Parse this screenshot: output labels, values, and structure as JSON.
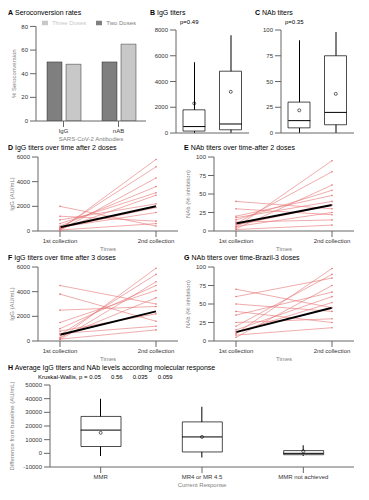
{
  "chart_data": [
    {
      "panel": "A",
      "type": "bar",
      "title": "Seroconversion rates",
      "categories": [
        "IgG",
        "nAB"
      ],
      "series": [
        {
          "name": "Two Doses",
          "color": "#7f7f7f",
          "values": [
            50,
            50
          ]
        },
        {
          "name": "Three Doses",
          "color": "#c8c8c8",
          "values": [
            48,
            65
          ]
        }
      ],
      "xlabel": "SARS-CoV-2 Antibodies",
      "ylabel": "% Seroconversion",
      "ylim": [
        0,
        80
      ],
      "yticks": [
        0,
        20,
        40,
        60,
        80
      ],
      "legend": "top-right"
    },
    {
      "panel": "B",
      "type": "box",
      "title": "IgG titers",
      "annotations": [
        "p=0.49"
      ],
      "boxes": [
        {
          "min": 0,
          "q1": 150,
          "median": 500,
          "q3": 1800,
          "max": 5500,
          "mean": 2300
        },
        {
          "min": 0,
          "q1": 250,
          "median": 700,
          "q3": 4800,
          "max": 7600,
          "mean": 3200
        }
      ],
      "ylim": [
        0,
        8000
      ],
      "yticks": [
        0,
        2000,
        4000,
        6000,
        8000
      ],
      "tick_labels": "y"
    },
    {
      "panel": "C",
      "type": "box",
      "title": "NAb titers",
      "annotations": [
        "p=0.35"
      ],
      "boxes": [
        {
          "min": 0,
          "q1": 5,
          "median": 12,
          "q3": 30,
          "max": 90,
          "mean": 22
        },
        {
          "min": 0,
          "q1": 8,
          "median": 20,
          "q3": 75,
          "max": 98,
          "mean": 38
        }
      ],
      "ylim": [
        0,
        100
      ],
      "yticks": [
        0,
        25,
        50,
        75,
        100
      ],
      "tick_labels": "y"
    },
    {
      "panel": "D",
      "type": "line",
      "title": "IgG titers over time after 2 doses",
      "categories": [
        "1st collection",
        "2nd collection"
      ],
      "xlabel": "Times",
      "ylabel": "IgG (AU/mL)",
      "color": "#e57373",
      "ylim": [
        0,
        6000
      ],
      "yticks": [
        0,
        2000,
        4000,
        6000
      ],
      "series": [
        {
          "values": [
            100,
            5800
          ]
        },
        {
          "values": [
            200,
            5200
          ]
        },
        {
          "values": [
            50,
            4300
          ]
        },
        {
          "values": [
            400,
            3600
          ]
        },
        {
          "values": [
            150,
            2900
          ]
        },
        {
          "values": [
            900,
            2200
          ]
        },
        {
          "values": [
            300,
            1500
          ]
        },
        {
          "values": [
            1200,
            800
          ]
        },
        {
          "values": [
            80,
            600
          ]
        },
        {
          "values": [
            2000,
            400
          ]
        },
        {
          "values": [
            600,
            3100
          ]
        },
        {
          "values": [
            250,
            1900
          ]
        },
        {
          "color": "#000000",
          "line_style": "thick",
          "values": [
            300,
            2000
          ]
        }
      ]
    },
    {
      "panel": "E",
      "type": "line",
      "title": "NAb titers over time-after 2 doses",
      "categories": [
        "1st collection",
        "2nd collection"
      ],
      "xlabel": "Times",
      "ylabel": "NAb (% inhibition)",
      "color": "#e57373",
      "ylim": [
        0,
        100
      ],
      "yticks": [
        0,
        25,
        50,
        75,
        100
      ],
      "series": [
        {
          "values": [
            5,
            95
          ]
        },
        {
          "values": [
            10,
            80
          ]
        },
        {
          "values": [
            3,
            62
          ]
        },
        {
          "values": [
            20,
            48
          ]
        },
        {
          "values": [
            8,
            35
          ]
        },
        {
          "values": [
            30,
            22
          ]
        },
        {
          "values": [
            12,
            15
          ]
        },
        {
          "values": [
            2,
            8
          ]
        },
        {
          "values": [
            40,
            30
          ]
        },
        {
          "values": [
            15,
            55
          ]
        },
        {
          "values": [
            6,
            25
          ]
        },
        {
          "values": [
            18,
            40
          ]
        },
        {
          "color": "#000000",
          "line_style": "thick",
          "values": [
            10,
            35
          ]
        }
      ]
    },
    {
      "panel": "F",
      "type": "line",
      "title": "IgG titers over time after 3 doses",
      "categories": [
        "1st collection",
        "2nd collection"
      ],
      "xlabel": "Times",
      "ylabel": "IgG (AU/mL)",
      "color": "#e57373",
      "ylim": [
        0,
        6000
      ],
      "yticks": [
        0,
        2000,
        4000,
        6000
      ],
      "series": [
        {
          "values": [
            200,
            5900
          ]
        },
        {
          "values": [
            500,
            5400
          ]
        },
        {
          "values": [
            100,
            4800
          ]
        },
        {
          "values": [
            1500,
            4100
          ]
        },
        {
          "values": [
            300,
            3500
          ]
        },
        {
          "values": [
            2500,
            2800
          ]
        },
        {
          "values": [
            800,
            2200
          ]
        },
        {
          "values": [
            3800,
            1600
          ]
        },
        {
          "values": [
            150,
            900
          ]
        },
        {
          "values": [
            4500,
            3000
          ]
        },
        {
          "values": [
            1000,
            4500
          ]
        },
        {
          "values": [
            600,
            1200
          ]
        },
        {
          "color": "#000000",
          "line_style": "thick",
          "values": [
            500,
            2400
          ]
        }
      ]
    },
    {
      "panel": "G",
      "type": "line",
      "title": "NAb titers over time-Brazil-3 doses",
      "categories": [
        "1st collection",
        "2nd collection"
      ],
      "xlabel": "Times",
      "ylabel": "NAb (% inhibition)",
      "color": "#e57373",
      "ylim": [
        0,
        100
      ],
      "yticks": [
        0,
        25,
        50,
        75,
        100
      ],
      "series": [
        {
          "values": [
            10,
            98
          ]
        },
        {
          "values": [
            20,
            90
          ]
        },
        {
          "values": [
            5,
            75
          ]
        },
        {
          "values": [
            35,
            66
          ]
        },
        {
          "values": [
            12,
            52
          ]
        },
        {
          "values": [
            50,
            40
          ]
        },
        {
          "values": [
            25,
            30
          ]
        },
        {
          "values": [
            70,
            45
          ]
        },
        {
          "values": [
            8,
            18
          ]
        },
        {
          "values": [
            60,
            85
          ]
        },
        {
          "values": [
            15,
            60
          ]
        },
        {
          "values": [
            40,
            25
          ]
        },
        {
          "color": "#000000",
          "line_style": "thick",
          "values": [
            12,
            45
          ]
        }
      ]
    },
    {
      "panel": "H",
      "type": "box",
      "title": "Average IgG titers and NAb levels according molecular response",
      "annotations": [
        "Kruskal-Wallis, p = 0.05",
        "0.56",
        "0.035",
        "0.059"
      ],
      "categories": [
        "MMR",
        "MR4 or MR 4.5",
        "MMR not achieved"
      ],
      "xlabel": "Current Response",
      "ylabel": "Difference from baseline (AU/mL)",
      "boxes": [
        {
          "min": -2000,
          "q1": 5000,
          "median": 17000,
          "q3": 27000,
          "max": 40000,
          "mean": 15000
        },
        {
          "min": -3000,
          "q1": 1000,
          "median": 12000,
          "q3": 23000,
          "max": 34000,
          "mean": 12000
        },
        {
          "min": -2000,
          "q1": -1000,
          "median": 0,
          "q3": 2000,
          "max": 6000,
          "mean": 1500
        }
      ],
      "ylim": [
        -10000,
        50000
      ],
      "yticks": [
        -10000,
        0,
        10000,
        20000,
        30000,
        40000,
        50000
      ]
    }
  ]
}
